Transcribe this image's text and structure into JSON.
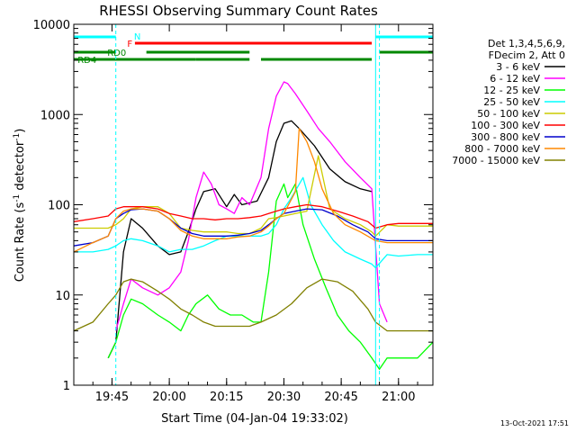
{
  "chart_data": {
    "type": "line",
    "title": "RHESSI Observing Summary Count Rates",
    "xlabel": "Start Time (04-Jan-04 19:33:02)",
    "ylabel_main": "Count Rate (s",
    "ylabel_sup1": "-1",
    "ylabel_mid": " detector",
    "ylabel_sup2": "-1",
    "ylabel_end": ")",
    "y_scale": "log",
    "ylim": [
      1,
      10000
    ],
    "xlim_minutes": [
      19.6,
      20.0,
      21.0
    ],
    "x_range_clock": [
      "19:35",
      "21:09"
    ],
    "x_ticks": [
      "19:45",
      "20:00",
      "20:15",
      "20:30",
      "20:45",
      "21:00"
    ],
    "y_ticks": [
      "1",
      "10",
      "100",
      "1000",
      "10000"
    ],
    "legend_header": [
      "Det 1,3,4,5,6,9,",
      "FDecim 2, Att 0"
    ],
    "timestamp": "13-Oct-2021 17:51",
    "flags": [
      {
        "label": "N",
        "color": "#00ffff"
      },
      {
        "label": "F",
        "color": "#ff0000"
      },
      {
        "label": "RD0",
        "color": "#008800"
      },
      {
        "label": "RD4",
        "color": "#008800"
      }
    ],
    "series": [
      {
        "name": "3 - 6 keV",
        "color": "#000000",
        "times": [
          "19:35",
          "19:44",
          "19:46",
          "19:48",
          "19:50",
          "19:53",
          "19:57",
          "20:00",
          "20:03",
          "20:05",
          "20:07",
          "20:09",
          "20:12",
          "20:15",
          "20:17",
          "20:19",
          "20:23",
          "20:26",
          "20:28",
          "20:30",
          "20:32",
          "20:34",
          "20:38",
          "20:42",
          "20:46",
          "20:50",
          "20:53",
          "20:54"
        ],
        "values": [
          null,
          2,
          3,
          30,
          70,
          55,
          35,
          28,
          30,
          50,
          90,
          140,
          150,
          95,
          130,
          100,
          110,
          200,
          500,
          800,
          850,
          700,
          450,
          250,
          180,
          150,
          140,
          null
        ]
      },
      {
        "name": "6 - 12 keV",
        "color": "#ff00ff",
        "times": [
          "19:35",
          "19:44",
          "19:46",
          "19:48",
          "19:50",
          "19:53",
          "19:57",
          "20:00",
          "20:03",
          "20:05",
          "20:07",
          "20:09",
          "20:11",
          "20:13",
          "20:15",
          "20:17",
          "20:19",
          "20:21",
          "20:24",
          "20:26",
          "20:28",
          "20:30",
          "20:31",
          "20:33",
          "20:36",
          "20:39",
          "20:42",
          "20:46",
          "20:50",
          "20:53",
          "20:55",
          "20:57"
        ],
        "values": [
          null,
          null,
          4,
          8,
          15,
          12,
          10,
          12,
          18,
          40,
          120,
          230,
          170,
          100,
          90,
          80,
          120,
          100,
          200,
          700,
          1600,
          2300,
          2200,
          1700,
          1100,
          700,
          500,
          300,
          200,
          150,
          8,
          5
        ]
      },
      {
        "name": "12 - 25 keV",
        "color": "#00ff00",
        "times": [
          "19:35",
          "19:40",
          "19:44",
          "19:46",
          "19:48",
          "19:50",
          "19:53",
          "19:57",
          "20:00",
          "20:03",
          "20:05",
          "20:07",
          "20:10",
          "20:13",
          "20:16",
          "20:19",
          "20:22",
          "20:24",
          "20:26",
          "20:28",
          "20:30",
          "20:31",
          "20:33",
          "20:35",
          "20:38",
          "20:41",
          "20:44",
          "20:47",
          "20:50",
          "20:53",
          "20:55",
          "20:57",
          "21:00",
          "21:05",
          "21:09"
        ],
        "values": [
          null,
          null,
          2,
          3,
          6,
          9,
          8,
          6,
          5,
          4,
          6,
          8,
          10,
          7,
          6,
          6,
          5,
          5,
          18,
          110,
          170,
          120,
          170,
          60,
          25,
          12,
          6,
          4,
          3,
          2,
          1.5,
          2,
          2,
          2,
          3
        ]
      },
      {
        "name": "25 - 50 keV",
        "color": "#00ffff",
        "times": [
          "19:35",
          "19:40",
          "19:44",
          "19:46",
          "19:48",
          "19:50",
          "19:53",
          "19:57",
          "20:00",
          "20:03",
          "20:06",
          "20:09",
          "20:12",
          "20:15",
          "20:18",
          "20:21",
          "20:24",
          "20:26",
          "20:28",
          "20:30",
          "20:32",
          "20:35",
          "20:37",
          "20:40",
          "20:43",
          "20:46",
          "20:50",
          "20:53",
          "20:54",
          "20:57",
          "21:00",
          "21:05",
          "21:09"
        ],
        "values": [
          30,
          30,
          32,
          35,
          40,
          42,
          40,
          35,
          30,
          32,
          32,
          35,
          40,
          45,
          45,
          45,
          45,
          48,
          60,
          90,
          120,
          200,
          100,
          60,
          40,
          30,
          25,
          22,
          20,
          28,
          27,
          28,
          28
        ]
      },
      {
        "name": "50 - 100 keV",
        "color": "#cccc00",
        "times": [
          "19:35",
          "19:40",
          "19:44",
          "19:46",
          "19:48",
          "19:50",
          "19:53",
          "19:57",
          "20:00",
          "20:03",
          "20:06",
          "20:09",
          "20:12",
          "20:15",
          "20:18",
          "20:21",
          "20:24",
          "20:26",
          "20:28",
          "20:30",
          "20:33",
          "20:36",
          "20:39",
          "20:42",
          "20:46",
          "20:50",
          "20:53",
          "20:54",
          "20:57",
          "21:00",
          "21:05",
          "21:09"
        ],
        "values": [
          55,
          55,
          55,
          60,
          70,
          90,
          95,
          95,
          80,
          55,
          52,
          50,
          50,
          50,
          48,
          48,
          55,
          70,
          72,
          75,
          80,
          85,
          350,
          90,
          70,
          60,
          50,
          45,
          60,
          58,
          58,
          58
        ]
      },
      {
        "name": "100 - 300 keV",
        "color": "#ff0000",
        "times": [
          "19:35",
          "19:40",
          "19:44",
          "19:46",
          "19:48",
          "19:50",
          "19:53",
          "19:57",
          "20:00",
          "20:03",
          "20:06",
          "20:09",
          "20:12",
          "20:15",
          "20:18",
          "20:21",
          "20:24",
          "20:26",
          "20:28",
          "20:30",
          "20:33",
          "20:36",
          "20:40",
          "20:44",
          "20:48",
          "20:52",
          "20:54",
          "20:57",
          "21:00",
          "21:05",
          "21:09"
        ],
        "values": [
          65,
          70,
          75,
          90,
          95,
          95,
          95,
          90,
          80,
          75,
          70,
          70,
          68,
          70,
          70,
          72,
          75,
          80,
          85,
          90,
          95,
          100,
          95,
          85,
          75,
          65,
          55,
          60,
          62,
          62,
          62
        ]
      },
      {
        "name": "300 - 800 keV",
        "color": "#0000cc",
        "times": [
          "19:35",
          "19:40",
          "19:44",
          "19:46",
          "19:48",
          "19:50",
          "19:53",
          "19:57",
          "20:00",
          "20:03",
          "20:06",
          "20:09",
          "20:12",
          "20:15",
          "20:18",
          "20:21",
          "20:24",
          "20:26",
          "20:28",
          "20:30",
          "20:33",
          "20:36",
          "20:40",
          "20:44",
          "20:48",
          "20:52",
          "20:54",
          "20:57",
          "21:00",
          "21:05",
          "21:09"
        ],
        "values": [
          35,
          38,
          45,
          70,
          80,
          88,
          90,
          85,
          70,
          55,
          48,
          45,
          45,
          45,
          46,
          48,
          52,
          60,
          70,
          80,
          85,
          90,
          88,
          75,
          60,
          50,
          42,
          40,
          40,
          40,
          40
        ]
      },
      {
        "name": "800 - 7000 keV",
        "color": "#ff8800",
        "times": [
          "19:35",
          "19:40",
          "19:44",
          "19:46",
          "19:48",
          "19:50",
          "19:53",
          "19:57",
          "20:00",
          "20:03",
          "20:06",
          "20:09",
          "20:12",
          "20:15",
          "20:18",
          "20:21",
          "20:24",
          "20:26",
          "20:28",
          "20:30",
          "20:33",
          "20:34",
          "20:36",
          "20:38",
          "20:40",
          "20:43",
          "20:46",
          "20:50",
          "20:54",
          "20:57",
          "21:00",
          "21:05",
          "21:09"
        ],
        "values": [
          30,
          38,
          45,
          70,
          85,
          90,
          90,
          85,
          70,
          52,
          45,
          42,
          42,
          42,
          44,
          45,
          50,
          58,
          70,
          80,
          140,
          700,
          500,
          300,
          150,
          80,
          60,
          50,
          40,
          38,
          38,
          38,
          38
        ]
      },
      {
        "name": "7000 - 15000 keV",
        "color": "#808000",
        "times": [
          "19:35",
          "19:40",
          "19:44",
          "19:46",
          "19:48",
          "19:50",
          "19:53",
          "19:57",
          "20:00",
          "20:03",
          "20:06",
          "20:09",
          "20:12",
          "20:15",
          "20:18",
          "20:21",
          "20:24",
          "20:28",
          "20:32",
          "20:36",
          "20:40",
          "20:44",
          "20:48",
          "20:52",
          "20:54",
          "20:57",
          "21:00",
          "21:05",
          "21:09"
        ],
        "values": [
          4,
          5,
          8,
          10,
          14,
          15,
          14,
          11,
          9,
          7,
          6,
          5,
          4.5,
          4.5,
          4.5,
          4.5,
          5,
          6,
          8,
          12,
          15,
          14,
          11,
          7,
          5,
          4,
          4,
          4,
          4
        ]
      }
    ]
  }
}
